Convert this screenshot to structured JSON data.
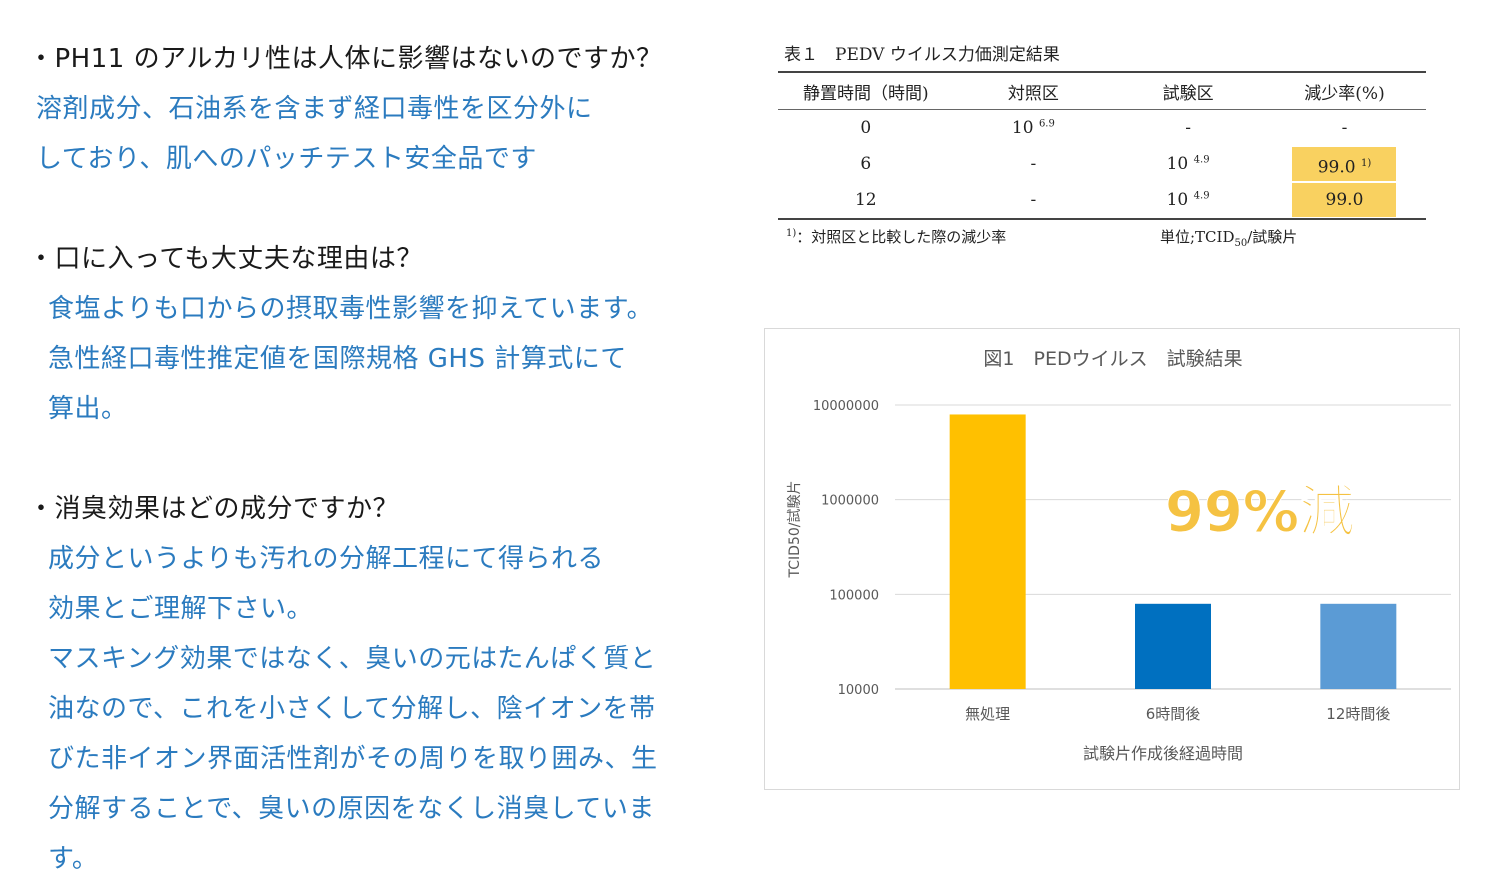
{
  "faq": [
    {
      "question": "・PH11 のアルカリ性は人体に影響はないのですか？",
      "answer_lines": [
        "溶剤成分、石油系を含まず経口毒性を区分外に",
        "しており、肌へのパッチテスト安全品です"
      ]
    },
    {
      "question": "・口に入っても大丈夫な理由は？",
      "answer_lines": [
        "食塩よりも口からの摂取毒性影響を抑えています。",
        "急性経口毒性推定値を国際規格 GHS 計算式にて",
        "算出。"
      ]
    },
    {
      "question": "・消臭効果はどの成分ですか？",
      "answer_lines": [
        "成分というよりも汚れの分解工程にて得られる",
        "効果とご理解下さい。",
        "マスキング効果ではなく、臭いの元はたんぱく質と",
        "油なので、これを小さくして分解し、陰イオンを帯",
        "びた非イオン界面活性剤がその周りを取り囲み、生",
        "分解することで、臭いの原因をなくし消臭していま",
        "す。"
      ]
    }
  ],
  "table": {
    "title": "表１　PEDV ウイルス力価測定結果",
    "headers": [
      "静置時間（時間)",
      "対照区",
      "試験区",
      "減少率(%)"
    ],
    "rows": [
      {
        "time": "0",
        "control_base": "10",
        "control_exp": "6.9",
        "test": "-",
        "rate": "-"
      },
      {
        "time": "6",
        "control": "-",
        "test_base": "10",
        "test_exp": "4.9",
        "rate": "99.0",
        "rate_note": "1)"
      },
      {
        "time": "12",
        "control": "-",
        "test_base": "10",
        "test_exp": "4.9",
        "rate": "99.0"
      }
    ],
    "footnote_mark": "1)",
    "footnote": "：対照区と比較した際の減少率",
    "unit_prefix": "単位;TCID",
    "unit_sub": "50",
    "unit_suffix": "/試験片",
    "highlight_color": "#f9d160"
  },
  "chart_data": {
    "type": "bar",
    "title": "図1　PEDウイルス　試験結果",
    "xlabel": "試験片作成後経過時間",
    "ylabel": "TCID50/試験片",
    "categories": [
      "無処理",
      "6時間後",
      "12時間後"
    ],
    "values": [
      7943282,
      79433,
      79433
    ],
    "colors": [
      "#ffc000",
      "#0070c0",
      "#5b9bd5"
    ],
    "y_scale": "log",
    "ylim": [
      10000,
      10000000
    ],
    "yticks": [
      "10000",
      "100000",
      "1000000",
      "10000000"
    ],
    "grid": true,
    "annotation": "99%減",
    "annotation_color": "#f5c242"
  }
}
